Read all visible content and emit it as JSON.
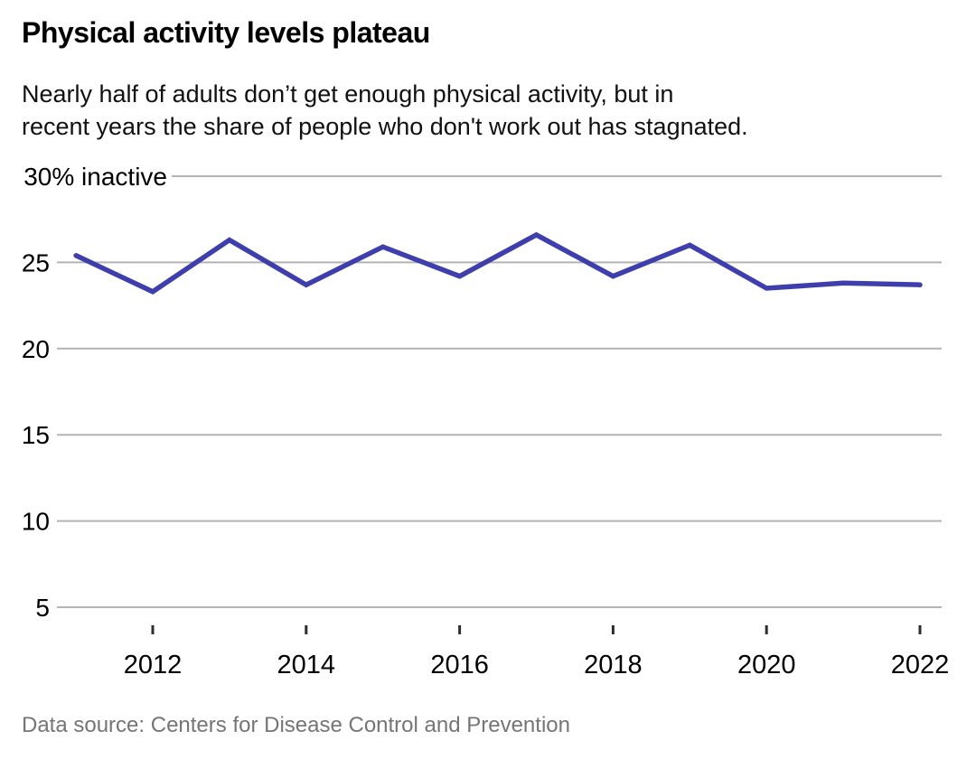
{
  "header": {
    "title": "Physical activity levels plateau",
    "subtitle": "Nearly half of adults don’t get enough physical activity, but in\nrecent years the share of people who don't work out has stagnated."
  },
  "footer": {
    "source": "Data source: Centers for Disease Control and Prevention"
  },
  "chart_data": {
    "type": "line",
    "title": "Physical activity levels plateau",
    "xlabel": "",
    "ylabel": "% inactive",
    "x": [
      2011,
      2012,
      2013,
      2014,
      2015,
      2016,
      2017,
      2018,
      2019,
      2020,
      2021,
      2022
    ],
    "values": [
      25.4,
      23.3,
      26.3,
      23.7,
      25.9,
      24.2,
      26.6,
      24.2,
      26.0,
      23.5,
      23.8,
      23.7
    ],
    "y_axis": {
      "ticks": [
        30,
        25,
        20,
        15,
        10,
        5
      ],
      "top_tick_label": "30% inactive",
      "shown_range": [
        5,
        30
      ]
    },
    "x_axis": {
      "tick_years": [
        2012,
        2014,
        2016,
        2018,
        2020,
        2022
      ]
    },
    "grid": true,
    "legend": "none",
    "colors": {
      "line": "#3e3ead",
      "grid": "#b3b3b3",
      "tick_mark": "#2e2e2e",
      "axis_text": "#000000",
      "source_text": "#757575"
    }
  }
}
